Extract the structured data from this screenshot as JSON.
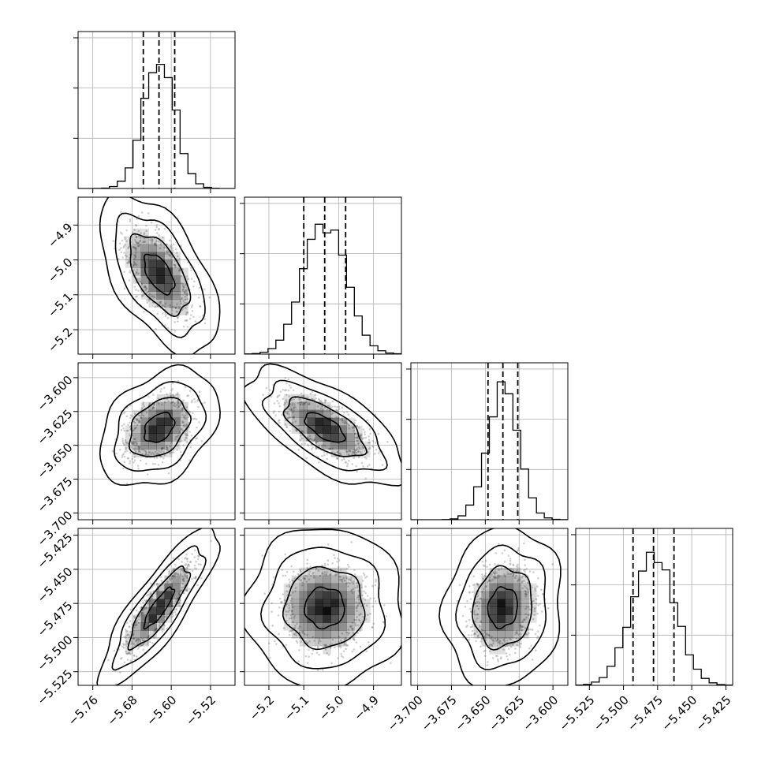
{
  "chart_data": {
    "type": "corner",
    "dimensions": 4,
    "parameters": [
      {
        "mean": -5.625,
        "sd": 0.032,
        "range": [
          -5.79,
          -5.47
        ],
        "quantiles": [
          -5.657,
          -5.625,
          -5.593
        ],
        "ticks": [
          -5.76,
          -5.68,
          -5.6,
          -5.52
        ],
        "tick_labels": [
          "−5.76",
          "−5.68",
          "−5.60",
          "−5.52"
        ]
      },
      {
        "mean": -5.04,
        "sd": 0.06,
        "range": [
          -5.27,
          -4.82
        ],
        "quantiles": [
          -5.1,
          -5.04,
          -4.98
        ],
        "ticks": [
          -5.2,
          -5.1,
          -5.0,
          -4.9
        ],
        "tick_labels": [
          "−5.2",
          "−5.1",
          "−5.0",
          "−4.9"
        ]
      },
      {
        "mean": -3.637,
        "sd": 0.0115,
        "range": [
          -3.705,
          -3.589
        ],
        "quantiles": [
          -3.648,
          -3.637,
          -3.626
        ],
        "ticks": [
          -3.7,
          -3.675,
          -3.65,
          -3.625,
          -3.6
        ],
        "tick_labels": [
          "−3.700",
          "−3.675",
          "−3.650",
          "−3.625",
          "−3.600"
        ]
      },
      {
        "mean": -5.478,
        "sd": 0.0155,
        "range": [
          -5.535,
          -5.42
        ],
        "quantiles": [
          -5.493,
          -5.478,
          -5.463
        ],
        "ticks": [
          -5.525,
          -5.5,
          -5.475,
          -5.45,
          -5.425
        ],
        "tick_labels": [
          "−5.525",
          "−5.500",
          "−5.475",
          "−5.450",
          "−5.425"
        ]
      }
    ],
    "correlations": [
      [
        1.0,
        -0.55,
        0.35,
        0.85
      ],
      [
        -0.55,
        1.0,
        -0.65,
        0.0
      ],
      [
        0.35,
        -0.65,
        1.0,
        0.1
      ],
      [
        0.85,
        0.0,
        0.1,
        1.0
      ]
    ],
    "bins": 20,
    "contour_levels_sigma": [
      0.5,
      1.0,
      1.5,
      2.0
    ],
    "grid": true,
    "colors": {
      "points": "#777777",
      "density": "#000000",
      "lines": "#000000"
    }
  }
}
